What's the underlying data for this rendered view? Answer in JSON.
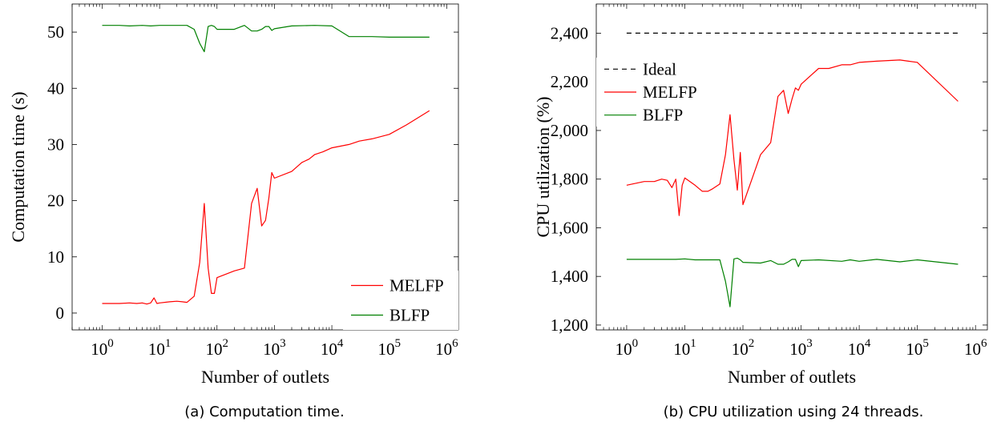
{
  "chart_data": [
    {
      "type": "line",
      "caption": "(a) Computation time.",
      "xlabel": "Number of outlets",
      "ylabel": "Computation time (s)",
      "xscale": "log",
      "xlim": [
        0.3,
        1600000
      ],
      "ylim": [
        -3,
        55
      ],
      "xticks": [
        1,
        10,
        100,
        1000,
        10000,
        100000,
        1000000
      ],
      "xtick_labels": [
        [
          "10",
          "0"
        ],
        [
          "10",
          "1"
        ],
        [
          "10",
          "2"
        ],
        [
          "10",
          "3"
        ],
        [
          "10",
          "4"
        ],
        [
          "10",
          "5"
        ],
        [
          "10",
          "6"
        ]
      ],
      "yticks": [
        0,
        10,
        20,
        30,
        40,
        50
      ],
      "ytick_labels": [
        "0",
        "10",
        "20",
        "30",
        "40",
        "50"
      ],
      "legend_position": "bottom-right",
      "series": [
        {
          "name": "MELFP",
          "color": "#ff0000",
          "x": [
            1,
            2,
            3,
            4,
            5,
            6,
            7,
            8,
            9,
            10,
            15,
            20,
            25,
            30,
            40,
            50,
            60,
            70,
            80,
            90,
            100,
            200,
            300,
            400,
            500,
            600,
            700,
            800,
            900,
            1000,
            2000,
            3000,
            4000,
            5000,
            7000,
            10000,
            20000,
            30000,
            50000,
            100000,
            200000,
            500000
          ],
          "y": [
            1.7,
            1.7,
            1.8,
            1.7,
            1.8,
            1.6,
            1.8,
            2.7,
            1.7,
            1.8,
            2.0,
            2.1,
            2.0,
            1.9,
            3.0,
            9.0,
            19.5,
            8.0,
            3.5,
            3.5,
            6.3,
            7.5,
            8.0,
            19.5,
            22.2,
            15.5,
            16.5,
            20.5,
            25.0,
            24.0,
            25.2,
            26.8,
            27.4,
            28.2,
            28.7,
            29.4,
            30.0,
            30.6,
            31.0,
            31.8,
            33.5,
            36.0
          ]
        },
        {
          "name": "BLFP",
          "color": "#008000",
          "x": [
            1,
            2,
            3,
            5,
            7,
            10,
            20,
            30,
            40,
            50,
            60,
            70,
            80,
            90,
            100,
            200,
            300,
            400,
            500,
            600,
            700,
            800,
            900,
            1000,
            2000,
            5000,
            10000,
            20000,
            50000,
            100000,
            500000
          ],
          "y": [
            51.2,
            51.2,
            51.1,
            51.2,
            51.1,
            51.2,
            51.2,
            51.2,
            50.5,
            48.0,
            46.5,
            51.0,
            51.2,
            51.0,
            50.5,
            50.5,
            51.2,
            50.2,
            50.2,
            50.5,
            51.0,
            51.0,
            50.3,
            50.6,
            51.1,
            51.2,
            51.1,
            49.2,
            49.2,
            49.1,
            49.1
          ]
        }
      ]
    },
    {
      "type": "line",
      "caption": "(b) CPU utilization using 24 threads.",
      "xlabel": "Number of outlets",
      "ylabel": "CPU utilization (%)",
      "xscale": "log",
      "xlim": [
        0.3,
        1600000
      ],
      "ylim": [
        1180,
        2520
      ],
      "xticks": [
        1,
        10,
        100,
        1000,
        10000,
        100000,
        1000000
      ],
      "xtick_labels": [
        [
          "10",
          "0"
        ],
        [
          "10",
          "1"
        ],
        [
          "10",
          "2"
        ],
        [
          "10",
          "3"
        ],
        [
          "10",
          "4"
        ],
        [
          "10",
          "5"
        ],
        [
          "10",
          "6"
        ]
      ],
      "yticks": [
        1200,
        1400,
        1600,
        1800,
        2000,
        2200,
        2400
      ],
      "ytick_labels": [
        "1,200",
        "1,400",
        "1,600",
        "1,800",
        "2,000",
        "2,200",
        "2,400"
      ],
      "legend_position": "top-left",
      "series": [
        {
          "name": "Ideal",
          "color": "#000000",
          "dashed": true,
          "x": [
            1,
            500000
          ],
          "y": [
            2400,
            2400
          ]
        },
        {
          "name": "MELFP",
          "color": "#ff0000",
          "x": [
            1,
            2,
            3,
            4,
            5,
            6,
            7,
            8,
            9,
            10,
            15,
            20,
            25,
            30,
            40,
            50,
            60,
            70,
            80,
            90,
            100,
            200,
            300,
            400,
            500,
            600,
            700,
            800,
            900,
            1000,
            2000,
            3000,
            5000,
            7000,
            10000,
            20000,
            50000,
            70000,
            100000,
            500000
          ],
          "y": [
            1775,
            1790,
            1790,
            1800,
            1795,
            1765,
            1800,
            1650,
            1775,
            1805,
            1775,
            1750,
            1750,
            1760,
            1780,
            1900,
            2065,
            1880,
            1755,
            1910,
            1695,
            1900,
            1950,
            2140,
            2165,
            2070,
            2130,
            2175,
            2165,
            2190,
            2255,
            2255,
            2270,
            2270,
            2280,
            2285,
            2290,
            2285,
            2280,
            2120
          ]
        },
        {
          "name": "BLFP",
          "color": "#008000",
          "x": [
            1,
            3,
            5,
            7,
            10,
            15,
            20,
            30,
            40,
            50,
            60,
            70,
            80,
            90,
            100,
            200,
            300,
            400,
            500,
            600,
            700,
            800,
            900,
            1000,
            2000,
            5000,
            7000,
            10000,
            20000,
            50000,
            100000,
            500000
          ],
          "y": [
            1470,
            1470,
            1470,
            1470,
            1472,
            1468,
            1468,
            1468,
            1468,
            1380,
            1275,
            1472,
            1475,
            1468,
            1458,
            1455,
            1465,
            1450,
            1450,
            1460,
            1470,
            1470,
            1440,
            1465,
            1468,
            1462,
            1468,
            1462,
            1470,
            1460,
            1468,
            1450
          ]
        }
      ]
    }
  ]
}
